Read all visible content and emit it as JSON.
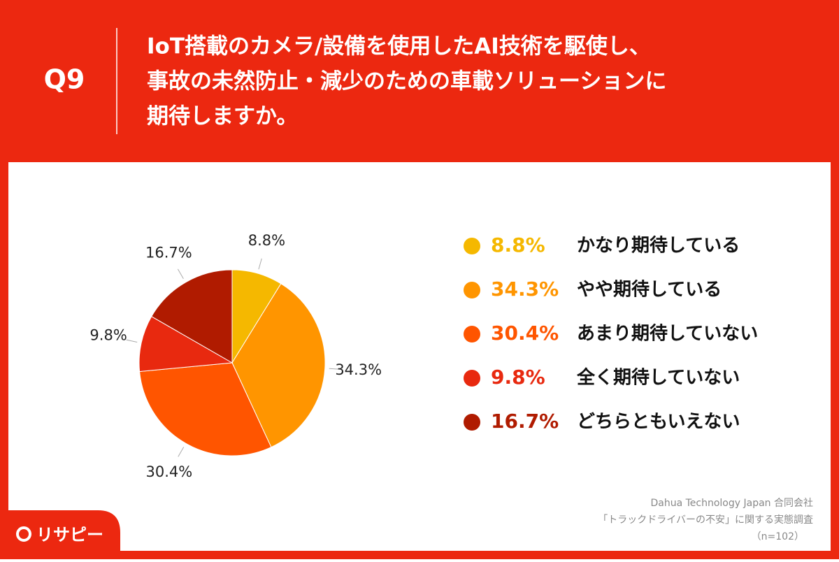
{
  "header": {
    "label": "Q9",
    "question": [
      "IoT搭載のカメラ/設備を使用したAI技術を駆使し、",
      "事故の未然防止・減少のための車載ソリューションに",
      "期待しますか。"
    ]
  },
  "chart_data": {
    "type": "pie",
    "categories": [
      "かなり期待している",
      "やや期待している",
      "あまり期待していない",
      "全く期待していない",
      "どちらともいえない"
    ],
    "values": [
      8.8,
      34.3,
      30.4,
      9.8,
      16.7
    ],
    "value_labels": [
      "8.8%",
      "34.3%",
      "30.4%",
      "9.8%",
      "16.7%"
    ],
    "colors": [
      "#f5b800",
      "#ff9500",
      "#ff5500",
      "#e8290f",
      "#b01b00"
    ]
  },
  "source": [
    "Dahua Technology Japan 合同会社",
    "「トラックドライバーの不安」に関する実態調査",
    "（n=102）"
  ],
  "logo": "リサピー"
}
